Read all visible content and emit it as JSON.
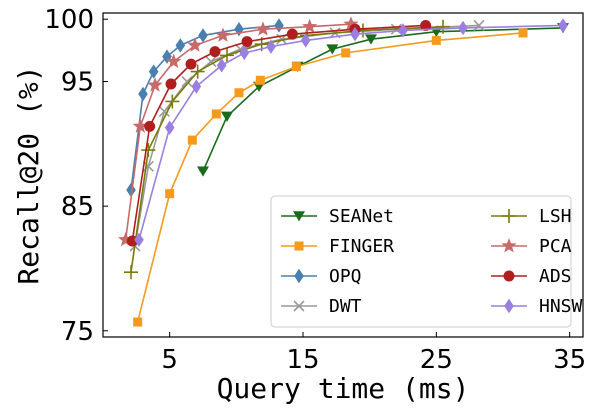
{
  "chart_data": {
    "type": "line",
    "title": "",
    "xlabel": "Query time (ms)",
    "ylabel": "Recall@20 (%)",
    "xlim": [
      0,
      36
    ],
    "ylim": [
      74.5,
      100.5
    ],
    "xticks": [
      5,
      15,
      25,
      35
    ],
    "yticks": [
      75,
      85,
      95,
      100
    ],
    "legend": {
      "location": "lower-right",
      "columns": 2
    },
    "series": [
      {
        "name": "SEANet",
        "color": "#1a6b1a",
        "marker": "triangle-down",
        "x": [
          7.5,
          9.3,
          11.7,
          14.6,
          17.2,
          20.1,
          25.0,
          34.5
        ],
        "y": [
          87.8,
          92.2,
          94.6,
          96.2,
          97.6,
          98.4,
          99.0,
          99.3
        ]
      },
      {
        "name": "FINGER",
        "color": "#f59a1a",
        "marker": "square",
        "x": [
          2.6,
          5.0,
          6.7,
          8.5,
          10.2,
          11.8,
          14.5,
          18.2,
          25.0,
          31.5
        ],
        "y": [
          75.7,
          86.0,
          90.3,
          92.4,
          94.1,
          95.1,
          96.2,
          97.3,
          98.3,
          98.9
        ]
      },
      {
        "name": "OPQ",
        "color": "#4a80b0",
        "marker": "diamond",
        "x": [
          2.1,
          3.0,
          3.8,
          4.8,
          5.8,
          7.5,
          10.2,
          13.2
        ],
        "y": [
          86.3,
          94.0,
          95.8,
          97.0,
          97.9,
          98.7,
          99.2,
          99.5
        ]
      },
      {
        "name": "DWT",
        "color": "#9a9a9a",
        "marker": "x",
        "x": [
          2.4,
          3.4,
          4.6,
          6.3,
          8.1,
          10.3,
          13.4,
          17.4,
          22.0,
          28.2
        ],
        "y": [
          81.8,
          88.2,
          92.6,
          95.0,
          96.6,
          97.6,
          98.4,
          98.9,
          99.2,
          99.5
        ]
      },
      {
        "name": "LSH",
        "color": "#7a7a0a",
        "marker": "plus",
        "x": [
          2.1,
          3.4,
          5.2,
          7.1,
          9.3,
          11.9,
          15.3,
          19.5,
          25.5
        ],
        "y": [
          79.7,
          89.5,
          93.4,
          95.8,
          97.1,
          98.0,
          98.7,
          99.1,
          99.4
        ]
      },
      {
        "name": "PCA",
        "color": "#c86a6a",
        "marker": "star",
        "x": [
          1.7,
          2.8,
          3.9,
          5.3,
          6.9,
          9.0,
          12.0,
          15.5,
          18.6
        ],
        "y": [
          82.3,
          91.4,
          94.7,
          96.6,
          97.9,
          98.7,
          99.2,
          99.4,
          99.6
        ]
      },
      {
        "name": "ADS",
        "color": "#b01e1e",
        "marker": "circle",
        "x": [
          2.2,
          3.5,
          5.1,
          6.6,
          8.4,
          10.8,
          14.2,
          18.9,
          24.2
        ],
        "y": [
          82.2,
          91.4,
          94.8,
          96.4,
          97.4,
          98.2,
          98.8,
          99.2,
          99.5
        ]
      },
      {
        "name": "HNSW",
        "color": "#9b7fe0",
        "marker": "diamond",
        "x": [
          2.7,
          5.0,
          7.0,
          8.9,
          10.6,
          12.6,
          15.2,
          18.9,
          22.5,
          27.0,
          34.5
        ],
        "y": [
          82.3,
          91.3,
          94.6,
          96.3,
          97.3,
          97.8,
          98.3,
          98.8,
          99.1,
          99.3,
          99.5
        ]
      }
    ]
  }
}
